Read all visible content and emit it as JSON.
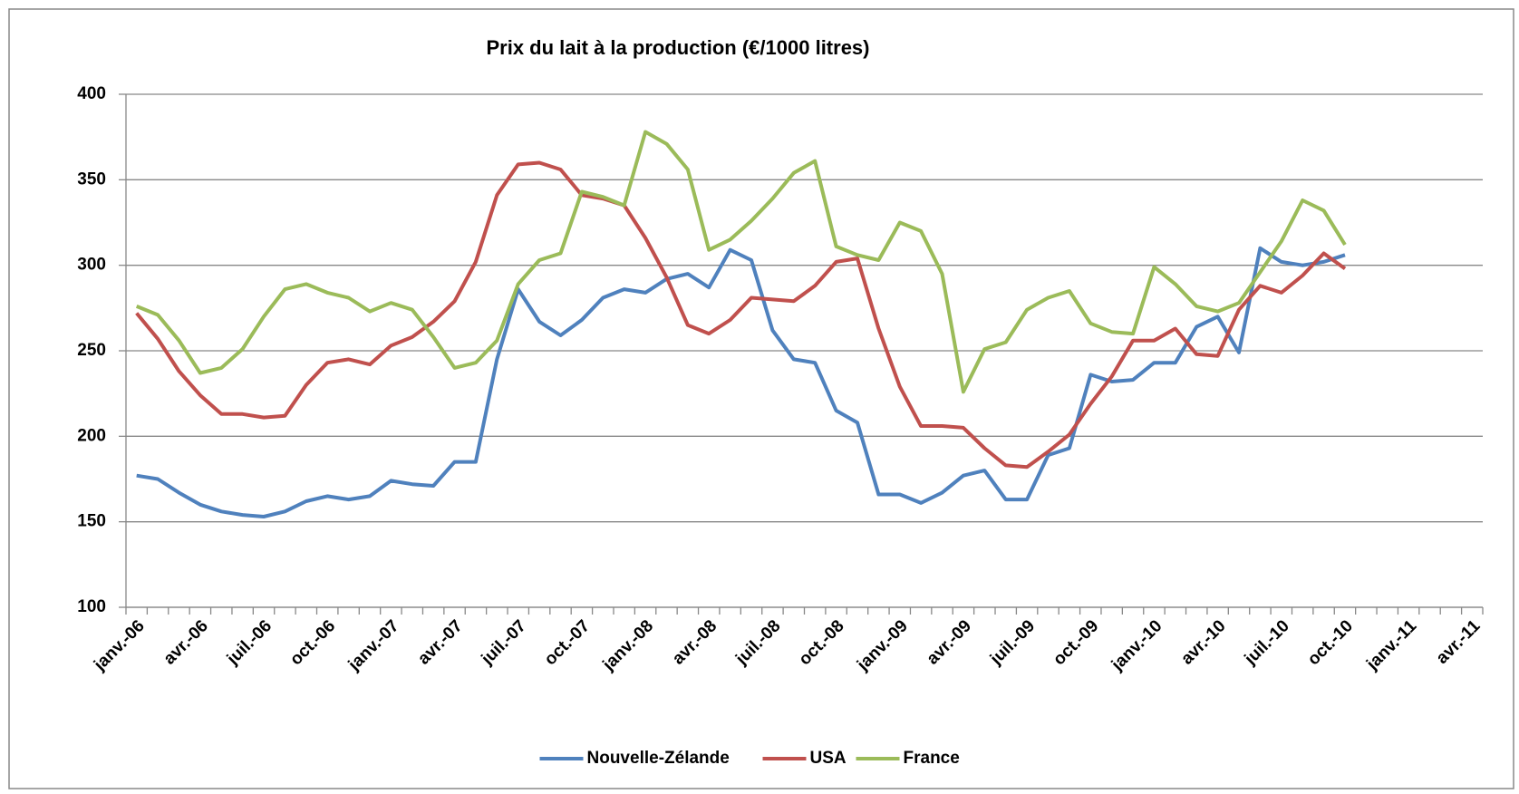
{
  "chart_data": {
    "type": "line",
    "title": "Prix du lait à la production (€/1000 litres)",
    "categories": [
      "janv.-06",
      null,
      null,
      "avr.-06",
      null,
      null,
      "juil.-06",
      null,
      null,
      "oct.-06",
      null,
      null,
      "janv.-07",
      null,
      null,
      "avr.-07",
      null,
      null,
      "juil.-07",
      null,
      null,
      "oct.-07",
      null,
      null,
      "janv.-08",
      null,
      null,
      "avr.-08",
      null,
      null,
      "juil.-08",
      null,
      null,
      "oct.-08",
      null,
      null,
      "janv.-09",
      null,
      null,
      "avr.-09",
      null,
      null,
      "juil.-09",
      null,
      null,
      "oct.-09",
      null,
      null,
      "janv.-10",
      null,
      null,
      "avr.-10",
      null,
      null,
      "juil.-10",
      null,
      null,
      "oct.-10",
      null,
      null,
      "janv.-11",
      null,
      null,
      "avr.-11"
    ],
    "series": [
      {
        "name": "Nouvelle-Zélande",
        "color": "#4f81bd",
        "values": [
          177,
          175,
          167,
          160,
          156,
          154,
          153,
          156,
          162,
          165,
          163,
          165,
          174,
          172,
          171,
          185,
          185,
          245,
          286,
          267,
          259,
          268,
          281,
          286,
          284,
          292,
          295,
          287,
          309,
          303,
          262,
          245,
          243,
          215,
          208,
          166,
          166,
          161,
          167,
          177,
          180,
          163,
          163,
          189,
          193,
          236,
          232,
          233,
          243,
          243,
          264,
          270,
          249,
          310,
          302,
          300,
          302,
          306,
          null,
          null,
          null,
          null,
          null,
          null
        ]
      },
      {
        "name": "USA",
        "color": "#c0504d",
        "values": [
          272,
          257,
          238,
          224,
          213,
          213,
          211,
          212,
          230,
          243,
          245,
          242,
          253,
          258,
          267,
          279,
          302,
          341,
          359,
          360,
          356,
          341,
          339,
          335,
          316,
          293,
          265,
          260,
          268,
          281,
          280,
          279,
          288,
          302,
          304,
          263,
          229,
          206,
          206,
          205,
          193,
          183,
          182,
          191,
          201,
          219,
          235,
          256,
          256,
          263,
          248,
          247,
          274,
          288,
          284,
          294,
          307,
          298,
          null,
          null,
          null,
          null,
          null,
          null
        ]
      },
      {
        "name": "France",
        "color": "#9bbb59",
        "values": [
          276,
          271,
          256,
          237,
          240,
          251,
          270,
          286,
          289,
          284,
          281,
          273,
          278,
          274,
          258,
          240,
          243,
          256,
          289,
          303,
          307,
          343,
          340,
          335,
          378,
          371,
          356,
          309,
          315,
          326,
          339,
          354,
          361,
          311,
          306,
          303,
          325,
          320,
          295,
          226,
          251,
          255,
          274,
          281,
          285,
          266,
          261,
          260,
          299,
          289,
          276,
          273,
          278,
          296,
          314,
          338,
          332,
          312,
          null,
          null,
          null,
          null,
          null,
          null
        ]
      }
    ],
    "ylim": [
      100,
      400
    ],
    "yticks": [
      100,
      150,
      200,
      250,
      300,
      350,
      400
    ],
    "grid": true,
    "legend": "bottom"
  }
}
